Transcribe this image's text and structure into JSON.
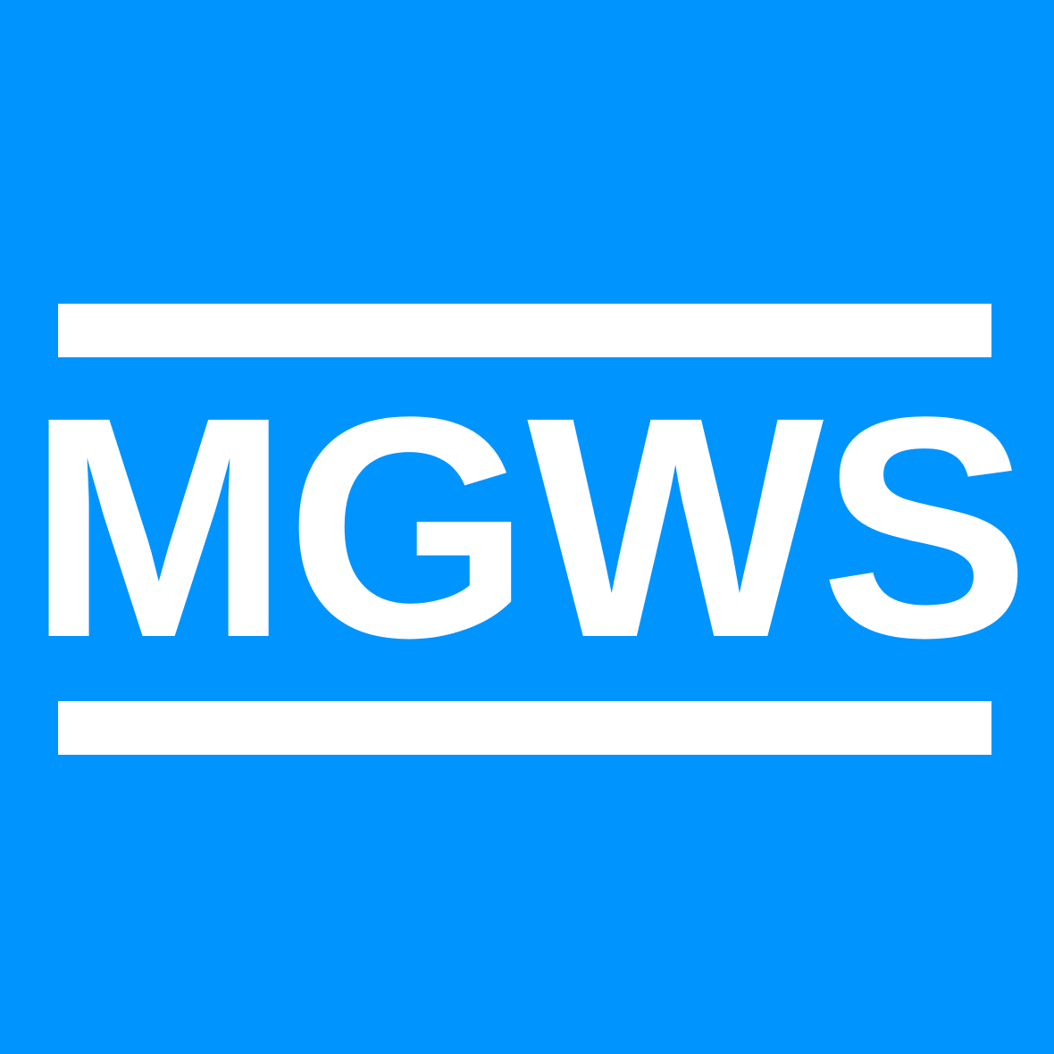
{
  "logo": {
    "text": "MGWS",
    "background_color": "#0094FF",
    "foreground_color": "#FFFFFF"
  }
}
